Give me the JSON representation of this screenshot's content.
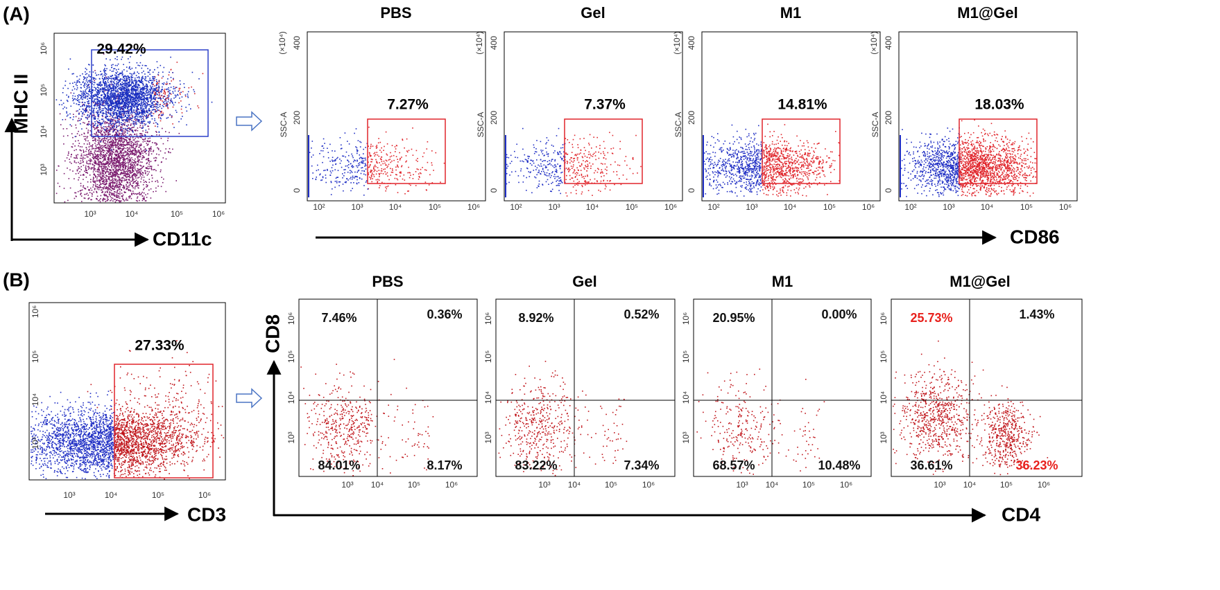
{
  "panel_a": {
    "label": "(A)",
    "gate_plot": {
      "y_axis": "MHC II",
      "x_axis": "CD11c",
      "gate": "29.42%",
      "yticks": [
        "10³",
        "10⁴",
        "10⁵",
        "10⁶"
      ],
      "xticks": [
        "10³",
        "10⁴",
        "10⁵",
        "10⁶"
      ]
    },
    "x_axis": "CD86",
    "y_unit": "(×10⁴)",
    "y_axis": "SSC-A",
    "yticks": [
      "0",
      "200",
      "400"
    ],
    "xticks": [
      "10²",
      "10³",
      "10⁴",
      "10⁵",
      "10⁶"
    ],
    "plots": [
      {
        "title": "PBS",
        "gate": "7.27%"
      },
      {
        "title": "Gel",
        "gate": "7.37%"
      },
      {
        "title": "M1",
        "gate": "14.81%"
      },
      {
        "title": "M1@Gel",
        "gate": "18.03%"
      }
    ]
  },
  "panel_b": {
    "label": "(B)",
    "gate_plot": {
      "x_axis": "CD3",
      "gate": "27.33%",
      "yticks": [
        "10³",
        "10⁴",
        "10⁵",
        "10⁶"
      ],
      "xticks": [
        "10³",
        "10⁴",
        "10⁵",
        "10⁶"
      ]
    },
    "x_axis": "CD4",
    "y_axis": "CD8",
    "yticks": [
      "10³",
      "10⁴",
      "10⁵",
      "10⁶"
    ],
    "xticks": [
      "10³",
      "10⁴",
      "10⁵",
      "10⁶"
    ],
    "highlight_color": "#e8211d",
    "plots": [
      {
        "title": "PBS",
        "quadrants": [
          "7.46%",
          "0.36%",
          "84.01%",
          "8.17%"
        ],
        "highlighted": []
      },
      {
        "title": "Gel",
        "quadrants": [
          "8.92%",
          "0.52%",
          "83.22%",
          "7.34%"
        ],
        "highlighted": []
      },
      {
        "title": "M1",
        "quadrants": [
          "20.95%",
          "0.00%",
          "68.57%",
          "10.48%"
        ],
        "highlighted": []
      },
      {
        "title": "M1@Gel",
        "quadrants": [
          "25.73%",
          "1.43%",
          "36.61%",
          "36.23%"
        ],
        "highlighted": [
          0,
          3
        ]
      }
    ]
  }
}
